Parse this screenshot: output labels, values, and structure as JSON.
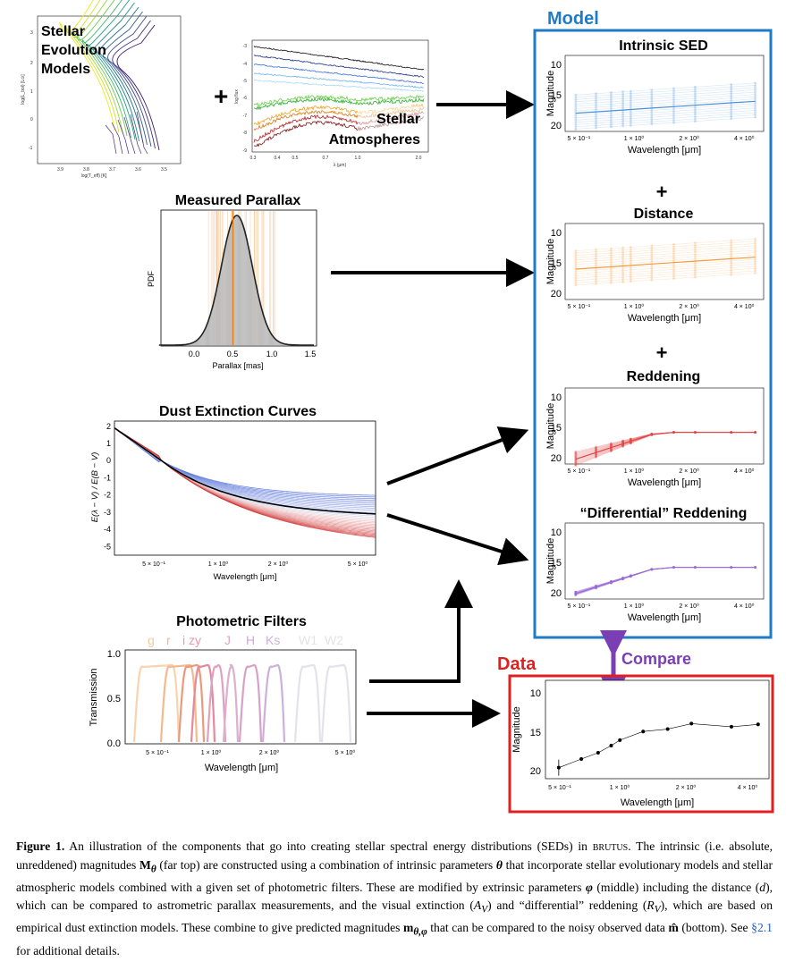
{
  "panels": {
    "evolution": {
      "title_lines": [
        "Stellar",
        "Evolution",
        "Models"
      ],
      "ylabel": "log(L_bol) [L⊙]",
      "xlabel": "log(T_eff) [K]",
      "xticks": [
        "3.9",
        "3.8",
        "3.7",
        "3.6",
        "3.5"
      ],
      "yticks": [
        "3",
        "2",
        "1",
        "0",
        "-1"
      ]
    },
    "atmospheres": {
      "title_lines": [
        "Stellar",
        "Atmospheres"
      ],
      "xlabel": "λ (μm)",
      "ylabel": "log flux",
      "xticks": [
        "0.3",
        "0.4",
        "0.5",
        "0.7",
        "1.0",
        "2.0"
      ],
      "yticks": [
        "-3",
        "-4",
        "-5",
        "-6",
        "-7",
        "-8",
        "-9"
      ]
    },
    "parallax": {
      "title": "Measured Parallax",
      "xlabel": "Parallax [mas]",
      "ylabel": "PDF",
      "xticks": [
        "0.0",
        "0.5",
        "1.0",
        "1.5"
      ]
    },
    "extinction": {
      "title": "Dust Extinction Curves",
      "ylabel": "E(λ − V) / E(B − V)",
      "xlabel": "Wavelength [μm]",
      "yticks": [
        "2",
        "1",
        "0",
        "-1",
        "-2",
        "-3",
        "-4",
        "-5"
      ],
      "xticks": [
        "5 × 10⁻¹",
        "1 × 10⁰",
        "2 × 10⁰",
        "5 × 10⁰"
      ]
    },
    "filters": {
      "title": "Photometric Filters",
      "band_labels": [
        {
          "text": "g",
          "color": "#f6c9a0"
        },
        {
          "text": "r",
          "color": "#f2b48d"
        },
        {
          "text": "i zy",
          "color": "#e99aa8"
        },
        {
          "text": "J",
          "color": "#e2a6c4"
        },
        {
          "text": "H",
          "color": "#d5a6d6"
        },
        {
          "text": "Ks",
          "color": "#cdb0dc"
        },
        {
          "text": "W1",
          "color": "#e3e3e8"
        },
        {
          "text": "W2",
          "color": "#e3e3e8"
        }
      ],
      "ylabel": "Transmission",
      "xlabel": "Wavelength [μm]",
      "yticks": [
        "1.0",
        "0.5",
        "0.0"
      ],
      "xticks": [
        "5 × 10⁻¹",
        "1 × 10⁰",
        "2 × 10⁰",
        "5 × 10⁰"
      ]
    },
    "plus": "+",
    "model": {
      "title": "Model",
      "color": "#1f7bc6",
      "subpanels": [
        {
          "title": "Intrinsic SED",
          "color": "#4a8fd8"
        },
        {
          "title": "Distance",
          "color": "#f39a3c"
        },
        {
          "title": "Reddening",
          "color": "#e04646"
        },
        {
          "title": "“Differential” Reddening",
          "color": "#9a6ad6"
        }
      ],
      "ylabel": "Magnitude",
      "xlabel": "Wavelength [μm]",
      "yticks": [
        "10",
        "15",
        "20"
      ],
      "xticks": [
        "5 × 10⁻¹",
        "1 × 10⁰",
        "2 × 10⁰",
        "4 × 10⁰"
      ],
      "plus_signs": [
        "+",
        "+"
      ]
    },
    "compare": {
      "label": "Compare",
      "color": "#7a3fb5"
    },
    "data": {
      "title": "Data",
      "color": "#e02020",
      "ylabel": "Magnitude",
      "xlabel": "Wavelength [μm]",
      "yticks": [
        "10",
        "15",
        "20"
      ],
      "xticks": [
        "5 × 10⁻¹",
        "1 × 10⁰",
        "2 × 10⁰",
        "4 × 10⁰"
      ]
    }
  },
  "chart_data": [
    {
      "type": "line",
      "title": "Data",
      "xlabel": "Wavelength [μm]",
      "ylabel": "Magnitude",
      "x": [
        0.48,
        0.62,
        0.75,
        0.87,
        0.96,
        1.25,
        1.65,
        2.16,
        3.4,
        4.6
      ],
      "y": [
        19.6,
        18.5,
        17.7,
        16.8,
        16.1,
        15.0,
        14.7,
        14.0,
        14.4,
        14.1
      ],
      "ylim": [
        21,
        8.5
      ],
      "xscale": "log"
    }
  ],
  "caption": {
    "label": "Figure 1.",
    "text1": "An illustration of the components that go into creating stellar spectral energy distributions (SEDs) in",
    "code": "brutus",
    "text2": ". The intrinsic (i.e. absolute, unreddened) magnitudes",
    "sym_M": "M",
    "sym_theta_sub": "θ",
    "text3": "(far top) are constructed using a combination of intrinsic parameters",
    "sym_theta": "θ",
    "text4": "that incorporate stellar evolutionary models and stellar atmospheric models combined with a given set of photometric filters. These are modified by extrinsic parameters",
    "sym_phi": "φ",
    "text5": "(middle) including the distance (",
    "sym_d": "d",
    "text6": "), which can be compared to astrometric parallax measurements, and the visual extinction (",
    "sym_AV": "A",
    "sym_V1": "V",
    "text7": ") and “differential” reddening (",
    "sym_RV": "R",
    "sym_V2": "V",
    "text8": "), which are based on empirical dust extinction models. These combine to give predicted magnitudes",
    "sym_m": "m",
    "sym_m_sub": "θ,φ",
    "text9": "that can be compared to the noisy observed data",
    "sym_mhat": "m̂",
    "text10": "(bottom). See",
    "ref": "§2.1",
    "text11": "for additional details."
  }
}
